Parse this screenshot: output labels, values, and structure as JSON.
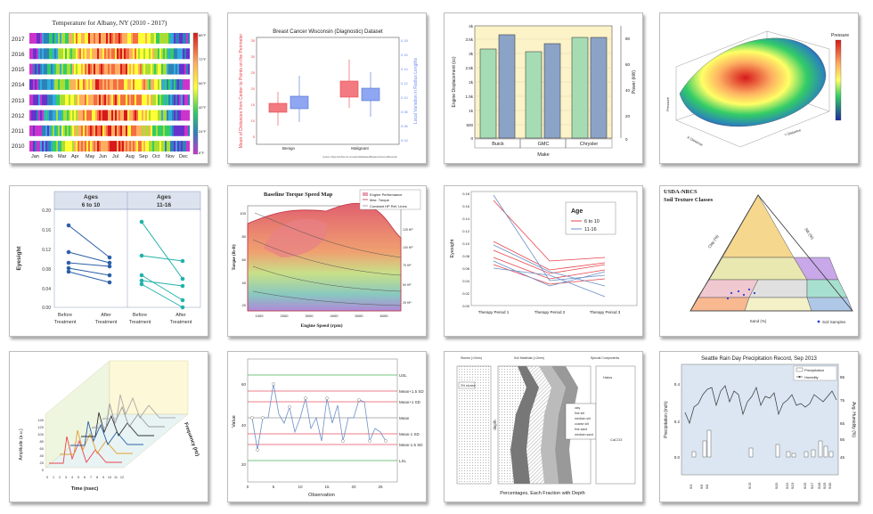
{
  "colors": {
    "accent_red": "#e8434b",
    "accent_blue": "#4b6fd1",
    "teal": "#20b2aa",
    "card_border": "#bcbcbc"
  },
  "thumbs": [
    {
      "id": "heatmap",
      "title": "Temperature for Albany, NY (2010 - 2017)",
      "rows": [
        "2017",
        "2016",
        "2015",
        "2014",
        "2013",
        "2012",
        "2011",
        "2010"
      ],
      "months": [
        "Jan",
        "Feb",
        "Mar",
        "Apr",
        "May",
        "Jun",
        "Jul",
        "Aug",
        "Sep",
        "Oct",
        "Nov",
        "Dec"
      ],
      "scale": [
        "88°F",
        "72°F",
        "56°F",
        "40°F",
        "24°F",
        "8°F"
      ]
    },
    {
      "id": "boxplot",
      "title": "Breast Cancer Wisconsin (Diagnostic) Dataset",
      "ylabel": "Mean of Distances from Center to Points on the Perimeter",
      "y2label": "Local Variation in Radius Lengths",
      "categories": [
        "Benign",
        "Malignant"
      ],
      "yticks": [
        "35",
        "30",
        "25",
        "20",
        "15",
        "10",
        "5"
      ],
      "y2ticks": [
        "0.18",
        "0.16",
        "0.14",
        "0.12",
        "0.10",
        "0.08",
        "0.06",
        "0.04"
      ],
      "footnote": "source: https://archive.ics.uci.edu/ml/datasets/Breast+Cancer+Wisconsin"
    },
    {
      "id": "bars",
      "xlabel": "Make",
      "ylabel": "Engine Displacement (cc)",
      "y2label": "Power (kW)",
      "categories": [
        "Buick",
        "GMC",
        "Chrysler"
      ],
      "yticks": [
        "4k",
        "3.5k",
        "3k",
        "2.5k",
        "2k",
        "1.5k",
        "1k",
        "500",
        "0"
      ],
      "y2ticks": [
        "80",
        "60",
        "40",
        "20",
        "0"
      ]
    },
    {
      "id": "surface",
      "legend_title": "Pressure",
      "axes": [
        "X Distance",
        "Y Distance",
        "Pressure"
      ]
    },
    {
      "id": "before_after",
      "headers": [
        "Ages\n6 to 10",
        "Ages\n11-16"
      ],
      "ylabel": "Eyesight",
      "yticks": [
        "0.20",
        "0.16",
        "0.12",
        "0.08",
        "0.04",
        "0.00"
      ],
      "xticks": [
        "Before\nTreatment",
        "After\nTreatment",
        "Before\nTreatment",
        "After\nTreatment"
      ]
    },
    {
      "id": "torque",
      "title": "Baseline Torque Speed Map",
      "legend": [
        "Engine Performance",
        "Max. Torque",
        "Constant HP Ref. Lines"
      ],
      "xlabel": "Engine Speed (rpm)",
      "ylabel": "Torque (lb-ft)",
      "xticks": [
        "1000",
        "2000",
        "3000",
        "4000",
        "5000",
        "6000"
      ],
      "yticks": [
        "100",
        "80",
        "60",
        "40",
        "20"
      ],
      "hp": [
        "125 HP",
        "100 HP",
        "75 HP",
        "50 HP",
        "25 HP"
      ]
    },
    {
      "id": "periods",
      "ylabel": "Eyesight",
      "legend_title": "Age",
      "legend": [
        "6 to 10",
        "11-16"
      ],
      "xticks": [
        "Therapy Period 1",
        "Therapy Period 2",
        "Therapy Period 3"
      ],
      "yticks": [
        "0.18",
        "0.16",
        "0.14",
        "0.12",
        "0.10",
        "0.08",
        "0.06",
        "0.04",
        "0.02",
        "0.00"
      ]
    },
    {
      "id": "ternary",
      "title": "USDA-NRCS\nSoil Texture Classes",
      "labels": [
        "Clay (%)",
        "Silt (%)",
        "Sand (%)"
      ],
      "legend": "Soil Samples"
    },
    {
      "id": "waterfall",
      "xlabel": "Time (nsec)",
      "ylabel": "Amplitude (a.u.)",
      "zlabel": "Frequency (Hz)",
      "xticks": [
        "0",
        "1",
        "2",
        "3",
        "4",
        "5",
        "6",
        "7",
        "8",
        "9",
        "10",
        "11",
        "12"
      ],
      "yticks": [
        "140",
        "120",
        "100",
        "80",
        "60",
        "40",
        "20",
        "0"
      ]
    },
    {
      "id": "control",
      "ylabel": "Value",
      "xlabel": "Observation",
      "levels": [
        "USL",
        "Mean+1.5 SD",
        "Mean+1 SD",
        "Mean",
        "Mean-1 SD",
        "Mean-1.5 SD",
        "LSL"
      ],
      "yticks": [
        "60",
        "40",
        "20"
      ],
      "xticks": [
        "0",
        "5",
        "10",
        "15",
        "20",
        "25"
      ]
    },
    {
      "id": "soil_depth",
      "xlabel": "Percentages, Each Fraction with Depth",
      "ylabel": "depth",
      "headers": [
        "Stones (>2mm)",
        "Soil Materials (<2mm)",
        "Special Components"
      ],
      "legend": [
        "clay",
        "fine silt",
        "medium silt",
        "coarse silt",
        "fine sand",
        "medium sand"
      ],
      "notes": [
        "3% stones",
        "Halos",
        "CaCO3"
      ]
    },
    {
      "id": "rain",
      "title": "Seattle Rain Day Precipitation Record, Sep 2013",
      "legend": [
        "Precipitation",
        "Humidity"
      ],
      "ylabel": "Precipitation (inch)",
      "y2label": "Avg. Humidity (%)",
      "yticks": [
        "0.4",
        "0.2",
        "0.0"
      ],
      "y2ticks": [
        "85",
        "75",
        "65",
        "55",
        "45"
      ],
      "xticks": [
        "9/3",
        "9/5",
        "9/6",
        "9/15",
        "9/20",
        "9/22",
        "9/23",
        "9/25",
        "9/27",
        "9/28",
        "9/29",
        "9/30"
      ]
    }
  ]
}
